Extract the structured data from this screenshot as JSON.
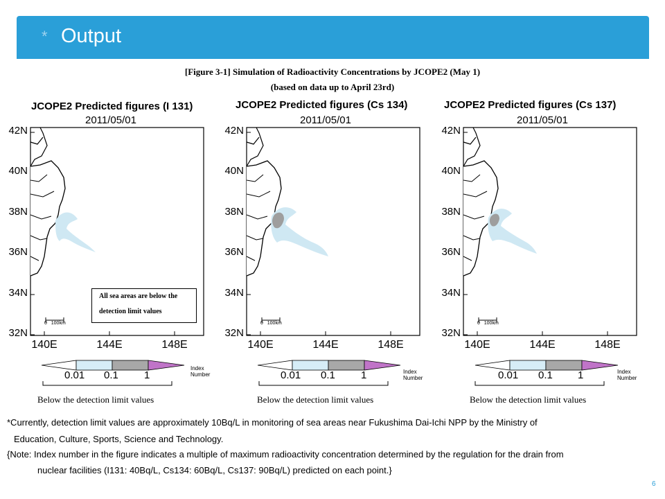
{
  "slide": {
    "bullet": "*",
    "title": "Output",
    "page_number": "6"
  },
  "figure": {
    "title_line1": "[Figure 3-1] Simulation of Radioactivity Concentrations by JCOPE2 (May 1)",
    "title_line2": "(based on data up to April 23rd)"
  },
  "maps": [
    {
      "heading": "JCOPE2 Predicted figures (I 131)",
      "date": "2011/05/01",
      "note_line1": "All sea areas are below the",
      "note_line2": "detection limit values"
    },
    {
      "heading": "JCOPE2 Predicted figures (Cs 134)",
      "date": "2011/05/01"
    },
    {
      "heading": "JCOPE2 Predicted figures (Cs 137)",
      "date": "2011/05/01"
    }
  ],
  "axes": {
    "y_ticks": [
      "42N",
      "40N",
      "38N",
      "36N",
      "34N",
      "32N"
    ],
    "x_ticks": [
      "140E",
      "144E",
      "148E"
    ],
    "scale_start": "0",
    "scale_end": "100",
    "scale_unit": "km"
  },
  "legend": {
    "values": [
      "0.01",
      "0.1",
      "1"
    ],
    "index_label": "Index Number",
    "below_label": "Below the detection limit values",
    "colors": {
      "lowest": "#ffffff",
      "low": "#d6edf7",
      "mid": "#a8a8a8",
      "high": "#c074c8"
    }
  },
  "footnotes": {
    "line1": "*Currently, detection limit values are approximately 10Bq/L in monitoring of sea areas near Fukushima Dai-Ichi NPP by the Ministry of",
    "line2": "Education, Culture, Sports, Science and Technology.",
    "line3": "{Note: Index number in the figure indicates a multiple of maximum radioactivity concentration determined by the regulation for the drain from",
    "line4": "nuclear facilities (I131: 40Bq/L, Cs134: 60Bq/L, Cs137: 90Bq/L) predicted on each point.}"
  }
}
